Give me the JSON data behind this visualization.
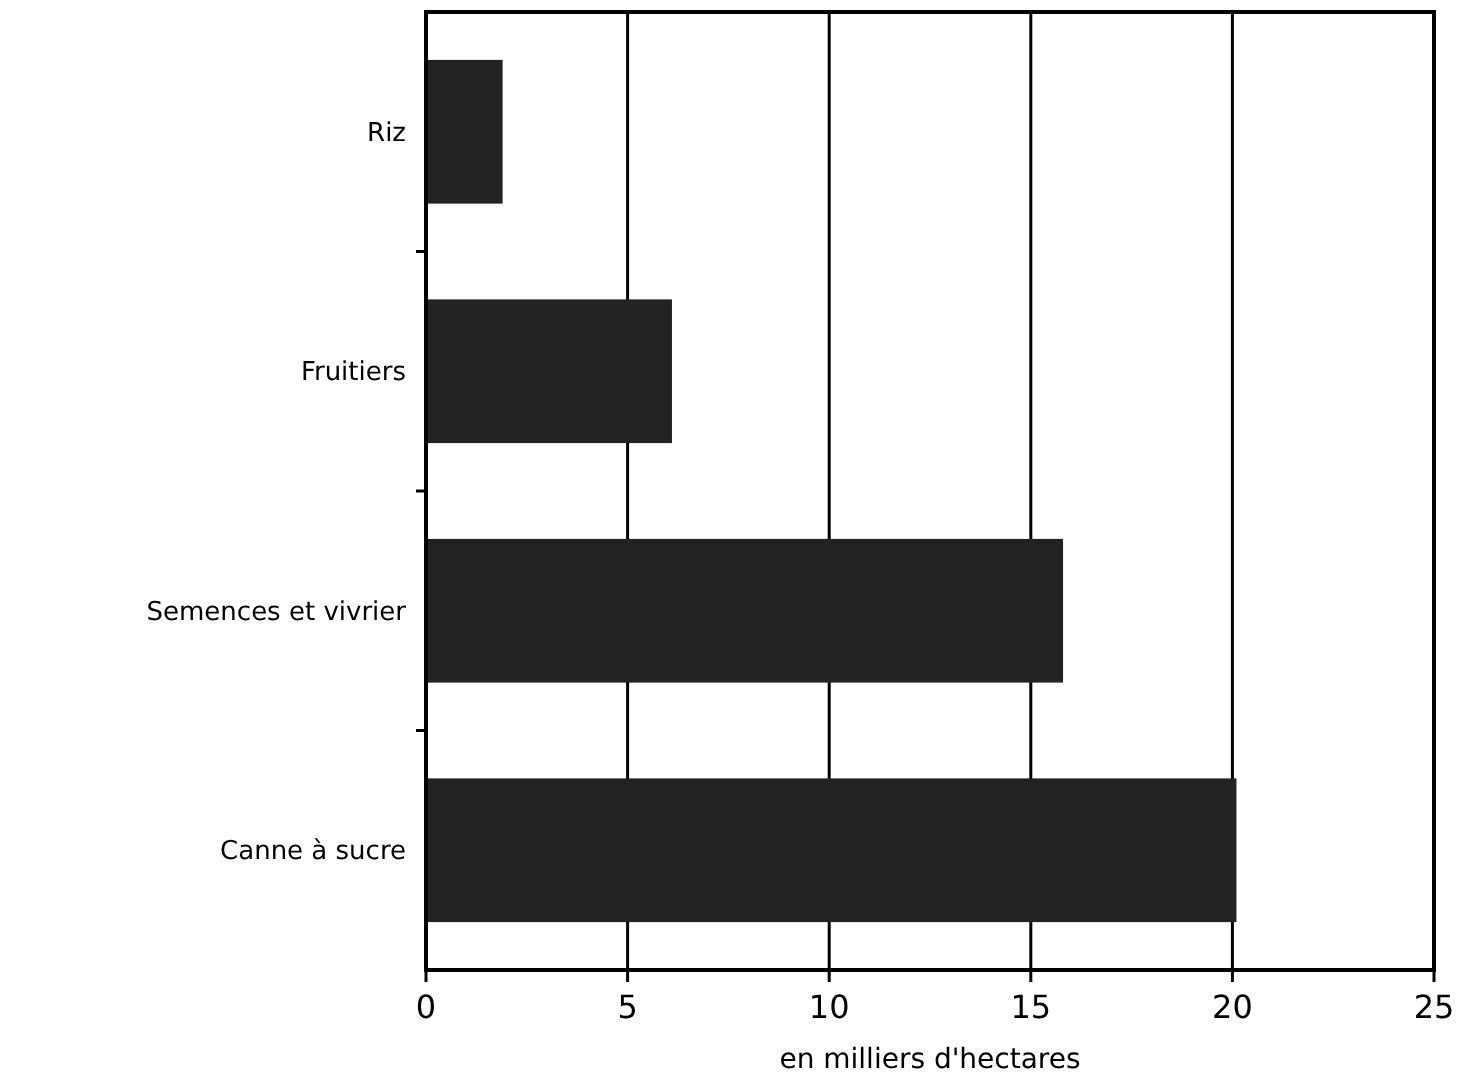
{
  "chart_data": {
    "type": "bar",
    "orientation": "horizontal",
    "xlabel": "en milliers d'hectares",
    "categories": [
      "Riz",
      "Fruitiers",
      "Semences et vivrier",
      "Canne à sucre"
    ],
    "values": [
      1.9,
      6.1,
      15.8,
      20.1
    ],
    "color": "#222222",
    "xlim": [
      0,
      25
    ],
    "xticks": [
      0,
      5,
      10,
      15,
      20,
      25
    ],
    "grid": "x"
  }
}
